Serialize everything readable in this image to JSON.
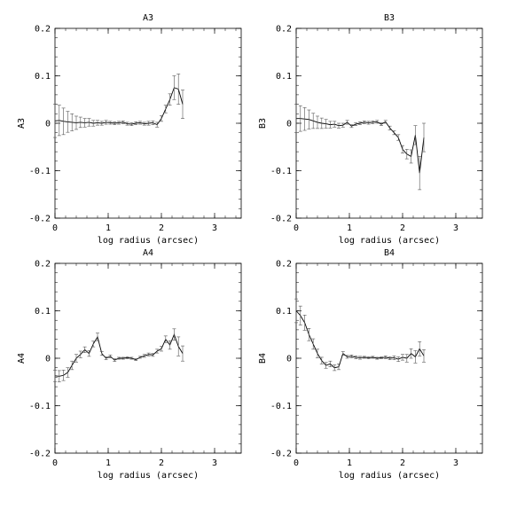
{
  "chart_data": [
    {
      "type": "line",
      "title": "A3",
      "xlabel": "log radius (arcsec)",
      "ylabel": "A3",
      "xlim": [
        0,
        3.5
      ],
      "ylim": [
        -0.2,
        0.2
      ],
      "xticks": [
        "0",
        "1",
        "2",
        "3"
      ],
      "yticks": [
        "-0.2",
        "-0.1",
        "0",
        "0.1",
        "0.2"
      ],
      "grid": false,
      "series": [
        {
          "x": [
            0.0,
            0.08,
            0.16,
            0.24,
            0.32,
            0.4,
            0.48,
            0.56,
            0.64,
            0.72,
            0.8,
            0.88,
            0.96,
            1.04,
            1.12,
            1.2,
            1.28,
            1.36,
            1.44,
            1.52,
            1.6,
            1.68,
            1.76,
            1.84,
            1.92,
            2.0,
            2.08,
            2.16,
            2.24,
            2.32,
            2.4
          ],
          "y": [
            0.005,
            0.006,
            0.004,
            0.003,
            0.002,
            0.001,
            0.002,
            0.001,
            0.002,
            0.0,
            0.001,
            0.0,
            0.002,
            0.001,
            0.0,
            0.001,
            0.002,
            -0.001,
            -0.002,
            0.0,
            0.001,
            -0.001,
            0.0,
            0.001,
            -0.003,
            0.01,
            0.03,
            0.05,
            0.075,
            0.072,
            0.04
          ],
          "err": [
            0.035,
            0.032,
            0.028,
            0.022,
            0.018,
            0.014,
            0.011,
            0.009,
            0.008,
            0.006,
            0.005,
            0.004,
            0.004,
            0.003,
            0.003,
            0.003,
            0.003,
            0.003,
            0.003,
            0.003,
            0.003,
            0.003,
            0.004,
            0.004,
            0.005,
            0.006,
            0.008,
            0.012,
            0.025,
            0.032,
            0.03
          ]
        }
      ]
    },
    {
      "type": "line",
      "title": "B3",
      "xlabel": "log radius (arcsec)",
      "ylabel": "B3",
      "xlim": [
        0,
        3.5
      ],
      "ylim": [
        -0.2,
        0.2
      ],
      "xticks": [
        "0",
        "1",
        "2",
        "3"
      ],
      "yticks": [
        "-0.2",
        "-0.1",
        "0",
        "0.1",
        "0.2"
      ],
      "grid": false,
      "series": [
        {
          "x": [
            0.0,
            0.08,
            0.16,
            0.24,
            0.32,
            0.4,
            0.48,
            0.56,
            0.64,
            0.72,
            0.8,
            0.88,
            0.96,
            1.04,
            1.12,
            1.2,
            1.28,
            1.36,
            1.44,
            1.52,
            1.6,
            1.68,
            1.76,
            1.84,
            1.92,
            2.0,
            2.08,
            2.16,
            2.24,
            2.32,
            2.4
          ],
          "y": [
            0.01,
            0.01,
            0.009,
            0.008,
            0.005,
            0.002,
            0.0,
            -0.001,
            -0.003,
            -0.002,
            -0.005,
            -0.004,
            0.002,
            -0.006,
            -0.002,
            0.0,
            0.002,
            0.001,
            0.002,
            0.003,
            -0.002,
            0.003,
            -0.01,
            -0.02,
            -0.03,
            -0.055,
            -0.065,
            -0.07,
            -0.025,
            -0.105,
            -0.03
          ],
          "err": [
            0.03,
            0.027,
            0.024,
            0.02,
            0.016,
            0.013,
            0.011,
            0.009,
            0.007,
            0.006,
            0.005,
            0.004,
            0.004,
            0.003,
            0.003,
            0.003,
            0.003,
            0.003,
            0.003,
            0.003,
            0.003,
            0.003,
            0.004,
            0.004,
            0.006,
            0.008,
            0.01,
            0.014,
            0.02,
            0.035,
            0.03
          ]
        }
      ]
    },
    {
      "type": "line",
      "title": "A4",
      "xlabel": "log radius (arcsec)",
      "ylabel": "A4",
      "xlim": [
        0,
        3.5
      ],
      "ylim": [
        -0.2,
        0.2
      ],
      "xticks": [
        "0",
        "1",
        "2",
        "3"
      ],
      "yticks": [
        "-0.2",
        "-0.1",
        "0",
        "0.1",
        "0.2"
      ],
      "grid": false,
      "series": [
        {
          "x": [
            0.0,
            0.08,
            0.16,
            0.24,
            0.32,
            0.4,
            0.48,
            0.56,
            0.64,
            0.72,
            0.8,
            0.88,
            0.96,
            1.04,
            1.12,
            1.2,
            1.28,
            1.36,
            1.44,
            1.52,
            1.6,
            1.68,
            1.76,
            1.84,
            1.92,
            2.0,
            2.08,
            2.16,
            2.24,
            2.32,
            2.4
          ],
          "y": [
            -0.037,
            -0.038,
            -0.036,
            -0.03,
            -0.015,
            0.0,
            0.008,
            0.018,
            0.01,
            0.03,
            0.045,
            0.01,
            0.0,
            0.004,
            -0.004,
            0.0,
            0.0,
            0.001,
            0.0,
            -0.003,
            0.002,
            0.005,
            0.008,
            0.007,
            0.015,
            0.02,
            0.04,
            0.028,
            0.05,
            0.025,
            0.01
          ],
          "err": [
            0.012,
            0.012,
            0.011,
            0.01,
            0.009,
            0.008,
            0.007,
            0.006,
            0.006,
            0.006,
            0.008,
            0.004,
            0.003,
            0.003,
            0.003,
            0.002,
            0.002,
            0.002,
            0.002,
            0.002,
            0.002,
            0.003,
            0.003,
            0.003,
            0.004,
            0.005,
            0.007,
            0.009,
            0.012,
            0.02,
            0.016
          ]
        }
      ]
    },
    {
      "type": "line",
      "title": "B4",
      "xlabel": "log radius (arcsec)",
      "ylabel": "B4",
      "xlim": [
        0,
        3.5
      ],
      "ylim": [
        -0.2,
        0.2
      ],
      "xticks": [
        "0",
        "1",
        "2",
        "3"
      ],
      "yticks": [
        "-0.2",
        "-0.1",
        "0",
        "0.1",
        "0.2"
      ],
      "grid": false,
      "series": [
        {
          "x": [
            0.0,
            0.08,
            0.16,
            0.24,
            0.32,
            0.4,
            0.48,
            0.56,
            0.64,
            0.72,
            0.8,
            0.88,
            0.96,
            1.04,
            1.12,
            1.2,
            1.28,
            1.36,
            1.44,
            1.52,
            1.6,
            1.68,
            1.76,
            1.84,
            1.92,
            2.0,
            2.08,
            2.16,
            2.24,
            2.32,
            2.4
          ],
          "y": [
            0.1,
            0.09,
            0.075,
            0.05,
            0.03,
            0.01,
            -0.005,
            -0.015,
            -0.012,
            -0.02,
            -0.018,
            0.01,
            0.003,
            0.004,
            0.002,
            0.001,
            0.002,
            0.001,
            0.002,
            0.0,
            0.001,
            0.002,
            0.0,
            0.001,
            -0.002,
            0.002,
            0.0,
            0.01,
            0.003,
            0.02,
            0.005
          ],
          "err": [
            0.025,
            0.02,
            0.016,
            0.013,
            0.011,
            0.009,
            0.007,
            0.006,
            0.006,
            0.006,
            0.006,
            0.004,
            0.003,
            0.003,
            0.003,
            0.003,
            0.002,
            0.002,
            0.002,
            0.002,
            0.002,
            0.003,
            0.003,
            0.004,
            0.005,
            0.006,
            0.008,
            0.01,
            0.013,
            0.015,
            0.013
          ]
        }
      ]
    }
  ]
}
